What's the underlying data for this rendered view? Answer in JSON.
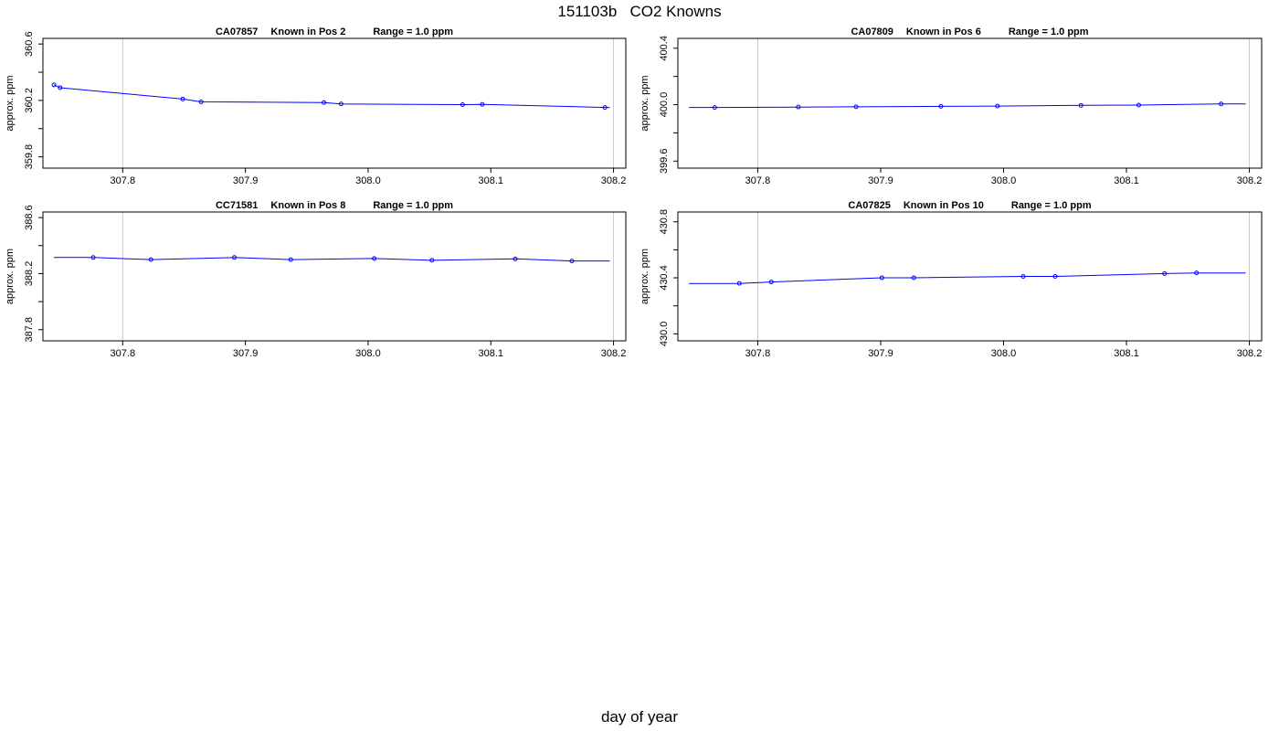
{
  "title": "151103b   CO2 Knowns",
  "xlabel": "day of year",
  "colors": {
    "series": "#0000ff",
    "grid": "#c8c8c8",
    "axis": "#000000"
  },
  "chart_data": [
    {
      "type": "line",
      "panel_title": [
        "CA07857",
        "Known in Pos 2",
        "Range = 1.0 ppm"
      ],
      "ylabel": "approx. ppm",
      "xlim": [
        307.735,
        308.21
      ],
      "ylim": [
        359.72,
        360.64
      ],
      "xticks": [
        307.8,
        307.9,
        308.0,
        308.1,
        308.2
      ],
      "xtick_labels": [
        "307.8",
        "307.9",
        "308.0",
        "308.1",
        "308.2"
      ],
      "yticks": [
        359.8,
        360.2,
        360.6
      ],
      "ytick_labels": [
        "359.8",
        "360.2",
        "360.6"
      ],
      "minor_yticks": [
        360.0,
        360.4
      ],
      "vlines": [
        307.8,
        308.2
      ],
      "x": [
        307.744,
        307.749,
        307.849,
        307.864,
        307.964,
        307.978,
        308.077,
        308.093,
        308.193,
        308.197
      ],
      "y": [
        360.31,
        360.29,
        360.21,
        360.19,
        360.185,
        360.175,
        360.17,
        360.172,
        360.15,
        360.15
      ],
      "marker_idx": [
        0,
        1,
        2,
        3,
        4,
        5,
        6,
        7,
        8
      ]
    },
    {
      "type": "line",
      "panel_title": [
        "CA07809",
        "Known in Pos 6",
        "Range = 1.0 ppm"
      ],
      "ylabel": "approx. ppm",
      "xlim": [
        307.735,
        308.21
      ],
      "ylim": [
        399.55,
        400.47
      ],
      "xticks": [
        307.8,
        307.9,
        308.0,
        308.1,
        308.2
      ],
      "xtick_labels": [
        "307.8",
        "307.9",
        "308.0",
        "308.1",
        "308.2"
      ],
      "yticks": [
        399.6,
        400.0,
        400.4
      ],
      "ytick_labels": [
        "399.6",
        "400.0",
        "400.4"
      ],
      "minor_yticks": [
        399.8,
        400.2
      ],
      "vlines": [
        307.8,
        308.2
      ],
      "x": [
        307.744,
        307.765,
        307.833,
        307.88,
        307.949,
        307.995,
        308.063,
        308.11,
        308.177,
        308.197
      ],
      "y": [
        399.98,
        399.98,
        399.983,
        399.985,
        399.988,
        399.99,
        399.995,
        399.997,
        400.005,
        400.005
      ],
      "marker_idx": [
        1,
        2,
        3,
        4,
        5,
        6,
        7,
        8
      ]
    },
    {
      "type": "line",
      "panel_title": [
        "CC71581",
        "Known in Pos 8",
        "Range = 1.0 ppm"
      ],
      "ylabel": "approx. ppm",
      "xlim": [
        307.735,
        308.21
      ],
      "ylim": [
        387.72,
        388.64
      ],
      "xticks": [
        307.8,
        307.9,
        308.0,
        308.1,
        308.2
      ],
      "xtick_labels": [
        "307.8",
        "307.9",
        "308.0",
        "308.1",
        "308.2"
      ],
      "yticks": [
        387.8,
        388.2,
        388.6
      ],
      "ytick_labels": [
        "387.8",
        "388.2",
        "388.6"
      ],
      "minor_yticks": [
        388.0,
        388.4
      ],
      "vlines": [
        307.8,
        308.2
      ],
      "x": [
        307.744,
        307.776,
        307.823,
        307.891,
        307.937,
        308.005,
        308.052,
        308.12,
        308.166,
        308.197
      ],
      "y": [
        388.315,
        388.315,
        388.3,
        388.315,
        388.3,
        388.308,
        388.295,
        388.305,
        388.29,
        388.29
      ],
      "marker_idx": [
        1,
        2,
        3,
        4,
        5,
        6,
        7,
        8
      ]
    },
    {
      "type": "line",
      "panel_title": [
        "CA07825",
        "Known in Pos 10",
        "Range = 1.0 ppm"
      ],
      "ylabel": "approx. ppm",
      "xlim": [
        307.735,
        308.21
      ],
      "ylim": [
        429.95,
        430.87
      ],
      "xticks": [
        307.8,
        307.9,
        308.0,
        308.1,
        308.2
      ],
      "xtick_labels": [
        "307.8",
        "307.9",
        "308.0",
        "308.1",
        "308.2"
      ],
      "yticks": [
        430.0,
        430.4,
        430.8
      ],
      "ytick_labels": [
        "430.0",
        "430.4",
        "430.8"
      ],
      "minor_yticks": [
        430.2,
        430.6
      ],
      "vlines": [
        307.8,
        308.2
      ],
      "x": [
        307.744,
        307.785,
        307.811,
        307.901,
        307.927,
        308.016,
        308.042,
        308.131,
        308.157,
        308.197
      ],
      "y": [
        430.36,
        430.36,
        430.37,
        430.4,
        430.4,
        430.41,
        430.41,
        430.43,
        430.435,
        430.435
      ],
      "marker_idx": [
        1,
        2,
        3,
        4,
        5,
        6,
        7,
        8
      ]
    }
  ]
}
